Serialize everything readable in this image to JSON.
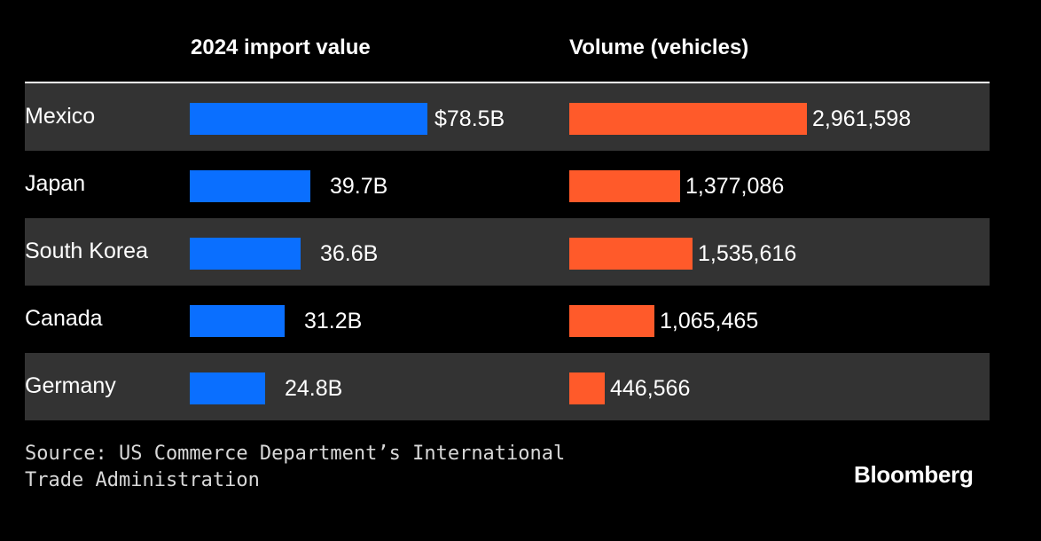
{
  "chart_data": {
    "type": "bar",
    "categories": [
      "Mexico",
      "Japan",
      "South Korea",
      "Canada",
      "Germany"
    ],
    "series": [
      {
        "name": "2024 import value",
        "values": [
          78.5,
          39.7,
          36.6,
          31.2,
          24.8
        ],
        "labels": [
          "$78.5B",
          "39.7B",
          "36.6B",
          "31.2B",
          "24.8B"
        ],
        "color": "#0a6fff"
      },
      {
        "name": "Volume (vehicles)",
        "values": [
          2961598,
          1377086,
          1535616,
          1065465,
          446566
        ],
        "labels": [
          "2,961,598",
          "1,377,086",
          "1,535,616",
          "1,065,465",
          "446,566"
        ],
        "color": "#ff5a2a"
      }
    ],
    "orientation": "horizontal",
    "row_shading": "alternating"
  },
  "footer": {
    "source_line1": "Source: US Commerce Department’s International",
    "source_line2": "Trade Administration",
    "brand": "Bloomberg"
  }
}
